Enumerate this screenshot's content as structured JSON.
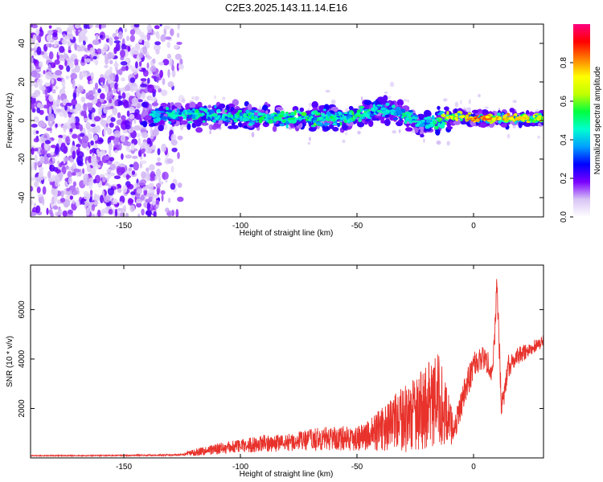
{
  "figure": {
    "title": "C2E3.2025.143.11.14.E16"
  },
  "chart_data": [
    {
      "type": "heatmap",
      "title": "C2E3.2025.143.11.14.E16",
      "xlabel": "Height of straight line (km)",
      "ylabel": "Frequency (Hz)",
      "xlim": [
        -190,
        30
      ],
      "ylim": [
        -50,
        50
      ],
      "x_ticks": [
        -150,
        -100,
        -50,
        0
      ],
      "y_ticks": [
        -40,
        -20,
        0,
        20,
        40
      ],
      "colorbar": {
        "label": "Normalized spectral amplitude",
        "range": [
          0,
          1
        ],
        "ticks": [
          "0.0",
          "0.2",
          "0.4",
          "0.6",
          "0.8"
        ],
        "colormap": [
          "#ffffff",
          "#d8c4f5",
          "#7a00ff",
          "#0000ff",
          "#00a0ff",
          "#00ffd0",
          "#00ff40",
          "#c0ff00",
          "#ffff00",
          "#ff8000",
          "#ff0000",
          "#ff0080"
        ]
      },
      "signal_track": {
        "x": [
          -140,
          -130,
          -120,
          -110,
          -100,
          -90,
          -80,
          -70,
          -60,
          -50,
          -45,
          -40,
          -35,
          -30,
          -25,
          -20,
          -15,
          -10,
          -5,
          0,
          10,
          20,
          30
        ],
        "center_freq": [
          2,
          3,
          3,
          3,
          2,
          2,
          1,
          1,
          1,
          2,
          4,
          6,
          5,
          3,
          0,
          -2,
          0,
          2,
          2,
          1,
          1,
          1,
          1
        ],
        "peak_amplitude": [
          0.45,
          0.5,
          0.55,
          0.5,
          0.55,
          0.55,
          0.55,
          0.6,
          0.55,
          0.6,
          0.55,
          0.5,
          0.5,
          0.55,
          0.5,
          0.45,
          0.6,
          0.75,
          0.8,
          0.9,
          0.85,
          0.8,
          0.75
        ]
      },
      "noise_region": {
        "x_range": [
          -190,
          -125
        ],
        "freq_range": [
          -50,
          50
        ],
        "amplitude": 0.2
      }
    },
    {
      "type": "line",
      "xlabel": "Height of straight line (km)",
      "ylabel": "SNR (10 * v/v)",
      "xlim": [
        -190,
        30
      ],
      "ylim": [
        0,
        7800
      ],
      "x_ticks": [
        -150,
        -100,
        -50,
        0
      ],
      "y_ticks": [
        2000,
        4000,
        6000
      ],
      "line_color": "#e8322b",
      "envelope": {
        "x": [
          -190,
          -170,
          -150,
          -130,
          -125,
          -120,
          -110,
          -100,
          -90,
          -80,
          -70,
          -60,
          -50,
          -45,
          -40,
          -35,
          -30,
          -25,
          -20,
          -15,
          -12,
          -10,
          -8,
          -5,
          0,
          5,
          8,
          9,
          10,
          11,
          12,
          15,
          20,
          25,
          30
        ],
        "baseline": [
          80,
          80,
          90,
          100,
          110,
          150,
          250,
          350,
          400,
          450,
          500,
          550,
          550,
          600,
          700,
          800,
          900,
          1000,
          1200,
          1400,
          1200,
          900,
          1000,
          2000,
          3500,
          3800,
          3300,
          4500,
          7000,
          4000,
          1800,
          3500,
          4000,
          4300,
          4600
        ],
        "amplitude": [
          40,
          40,
          50,
          60,
          80,
          300,
          450,
          550,
          700,
          700,
          900,
          1000,
          1000,
          1300,
          1700,
          2200,
          2700,
          3000,
          3500,
          3800,
          2600,
          1800,
          1000,
          1200,
          1200,
          1000,
          900,
          1500,
          800,
          1500,
          1200,
          900,
          700,
          600,
          500
        ]
      }
    }
  ]
}
